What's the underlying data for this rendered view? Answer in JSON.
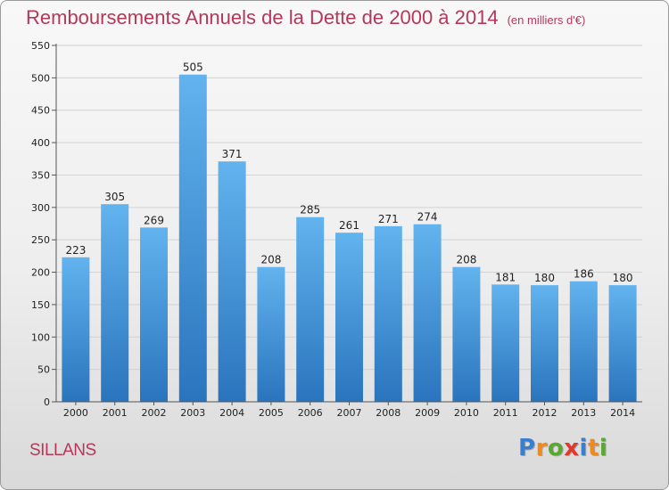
{
  "title": "Remboursements Annuels de la Dette de 2000 à 2014",
  "unit": "(en milliers d'€)",
  "commune": "SILLANS",
  "logo": {
    "text": "Proxiti",
    "letters": [
      {
        "ch": "P",
        "color": "#3a7fcf"
      },
      {
        "ch": "r",
        "color": "#f08a1c"
      },
      {
        "ch": "o",
        "color": "#5aa832"
      },
      {
        "ch": "x",
        "color": "#e0392b"
      },
      {
        "ch": "i",
        "color": "#3a7fcf"
      },
      {
        "ch": "t",
        "color": "#f08a1c"
      },
      {
        "ch": "i",
        "color": "#5aa832"
      }
    ]
  },
  "colors": {
    "title": "#b5385a",
    "bar_top": "#62b3ee",
    "bar_bottom": "#2a74bd",
    "grid": "#d2d2d2"
  },
  "chart_data": {
    "type": "bar",
    "title": "Remboursements Annuels de la Dette de 2000 à 2014",
    "subtitle": "(en milliers d'€)",
    "xlabel": "",
    "ylabel": "",
    "categories": [
      "2000",
      "2001",
      "2002",
      "2003",
      "2004",
      "2005",
      "2006",
      "2007",
      "2008",
      "2009",
      "2010",
      "2011",
      "2012",
      "2013",
      "2014"
    ],
    "values": [
      223,
      305,
      269,
      505,
      371,
      208,
      285,
      261,
      271,
      274,
      208,
      181,
      180,
      186,
      180
    ],
    "ylim": [
      0,
      550
    ],
    "yticks": [
      0,
      50,
      100,
      150,
      200,
      250,
      300,
      350,
      400,
      450,
      500,
      550
    ],
    "grid": true,
    "legend": "none",
    "data_labels": true
  }
}
